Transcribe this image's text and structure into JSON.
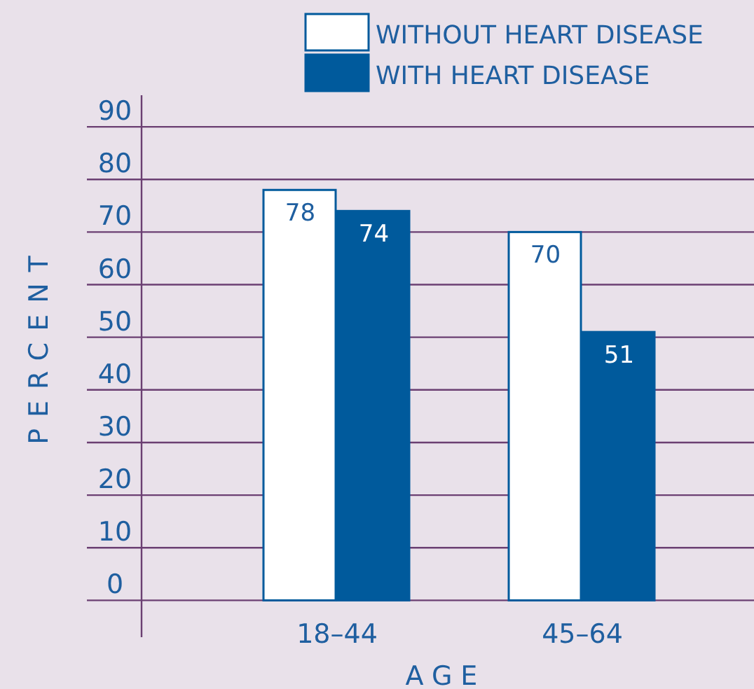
{
  "chart_data": {
    "type": "bar",
    "xlabel": "AGE",
    "ylabel": "PERCENT",
    "categories": [
      "18–44",
      "45–64"
    ],
    "series": [
      {
        "name": "WITHOUT HEART DISEASE",
        "color": "#ffffff",
        "values": [
          78,
          70
        ]
      },
      {
        "name": "WITH HEART DISEASE",
        "color": "#005a9c",
        "values": [
          74,
          51
        ]
      }
    ],
    "ylim": [
      -7,
      96
    ],
    "yticks": [
      0,
      10,
      20,
      30,
      40,
      50,
      60,
      70,
      80,
      90
    ],
    "grid": "y",
    "legend": "top right",
    "data_labels": true
  }
}
